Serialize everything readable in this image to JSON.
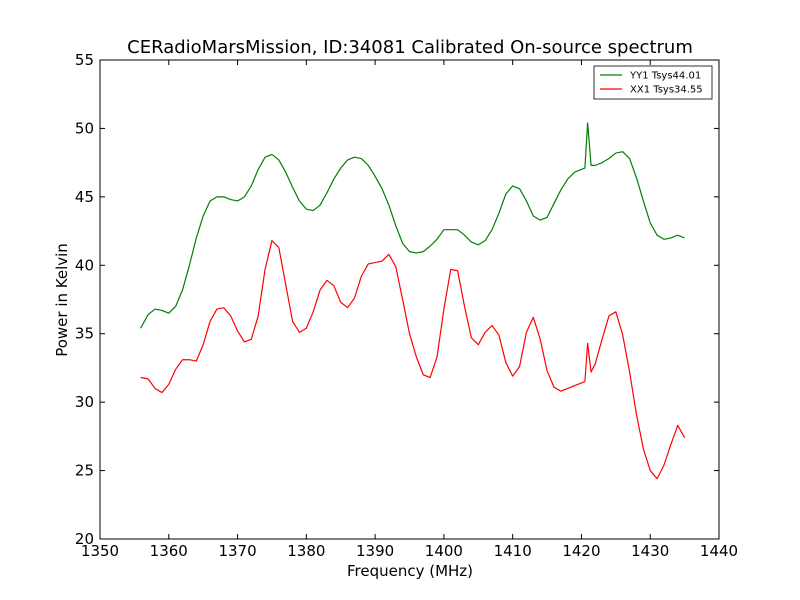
{
  "chart_data": {
    "type": "line",
    "title": "CERadioMarsMission, ID:34081 Calibrated On-source spectrum",
    "xlabel": "Frequency (MHz)",
    "ylabel": "Power in Kelvin",
    "xlim": [
      1350,
      1440
    ],
    "ylim": [
      20,
      55
    ],
    "xticks": [
      "1350",
      "1360",
      "1370",
      "1380",
      "1390",
      "1400",
      "1410",
      "1420",
      "1430",
      "1440"
    ],
    "yticks": [
      "20",
      "25",
      "30",
      "35",
      "40",
      "45",
      "50",
      "55"
    ],
    "grid": false,
    "legend_position": "top-right",
    "series": [
      {
        "name": "YY1 Tsys44.01",
        "color": "#008000",
        "points": [
          [
            1355.9,
            35.4
          ],
          [
            1357.0,
            36.4
          ],
          [
            1358.0,
            36.8
          ],
          [
            1359.0,
            36.7
          ],
          [
            1360.0,
            36.5
          ],
          [
            1361.0,
            37.0
          ],
          [
            1362.0,
            38.2
          ],
          [
            1363.0,
            40.0
          ],
          [
            1364.0,
            42.0
          ],
          [
            1365.0,
            43.6
          ],
          [
            1366.0,
            44.7
          ],
          [
            1367.0,
            45.0
          ],
          [
            1368.0,
            45.0
          ],
          [
            1369.0,
            44.8
          ],
          [
            1370.0,
            44.7
          ],
          [
            1371.0,
            45.0
          ],
          [
            1372.0,
            45.8
          ],
          [
            1373.0,
            47.0
          ],
          [
            1374.0,
            47.9
          ],
          [
            1375.0,
            48.1
          ],
          [
            1376.0,
            47.7
          ],
          [
            1377.0,
            46.8
          ],
          [
            1378.0,
            45.7
          ],
          [
            1379.0,
            44.7
          ],
          [
            1380.0,
            44.1
          ],
          [
            1381.0,
            44.0
          ],
          [
            1382.0,
            44.4
          ],
          [
            1383.0,
            45.3
          ],
          [
            1384.0,
            46.3
          ],
          [
            1385.0,
            47.1
          ],
          [
            1386.0,
            47.7
          ],
          [
            1387.0,
            47.9
          ],
          [
            1388.0,
            47.8
          ],
          [
            1389.0,
            47.3
          ],
          [
            1390.0,
            46.5
          ],
          [
            1391.0,
            45.6
          ],
          [
            1392.0,
            44.4
          ],
          [
            1393.0,
            42.9
          ],
          [
            1394.0,
            41.6
          ],
          [
            1395.0,
            41.0
          ],
          [
            1396.0,
            40.9
          ],
          [
            1397.0,
            41.0
          ],
          [
            1398.0,
            41.4
          ],
          [
            1399.0,
            41.9
          ],
          [
            1400.0,
            42.6
          ],
          [
            1401.0,
            42.6
          ],
          [
            1402.0,
            42.6
          ],
          [
            1403.0,
            42.2
          ],
          [
            1404.0,
            41.7
          ],
          [
            1405.0,
            41.5
          ],
          [
            1406.0,
            41.8
          ],
          [
            1407.0,
            42.6
          ],
          [
            1408.0,
            43.8
          ],
          [
            1409.0,
            45.2
          ],
          [
            1410.0,
            45.8
          ],
          [
            1411.0,
            45.6
          ],
          [
            1412.0,
            44.7
          ],
          [
            1413.0,
            43.6
          ],
          [
            1414.0,
            43.3
          ],
          [
            1415.0,
            43.5
          ],
          [
            1416.0,
            44.5
          ],
          [
            1417.0,
            45.5
          ],
          [
            1418.0,
            46.3
          ],
          [
            1419.0,
            46.8
          ],
          [
            1420.5,
            47.1
          ],
          [
            1420.9,
            50.4
          ],
          [
            1421.4,
            47.3
          ],
          [
            1422.0,
            47.3
          ],
          [
            1423.0,
            47.5
          ],
          [
            1424.0,
            47.8
          ],
          [
            1425.0,
            48.2
          ],
          [
            1426.0,
            48.3
          ],
          [
            1427.0,
            47.8
          ],
          [
            1428.0,
            46.4
          ],
          [
            1429.0,
            44.7
          ],
          [
            1430.0,
            43.1
          ],
          [
            1431.0,
            42.2
          ],
          [
            1432.0,
            41.9
          ],
          [
            1433.0,
            42.0
          ],
          [
            1434.0,
            42.2
          ],
          [
            1435.0,
            42.0
          ]
        ]
      },
      {
        "name": "XX1 Tsys34.55",
        "color": "#ff0000",
        "points": [
          [
            1355.9,
            31.8
          ],
          [
            1357.0,
            31.7
          ],
          [
            1358.0,
            31.0
          ],
          [
            1359.0,
            30.7
          ],
          [
            1360.0,
            31.3
          ],
          [
            1361.0,
            32.4
          ],
          [
            1362.0,
            33.1
          ],
          [
            1363.0,
            33.1
          ],
          [
            1364.0,
            33.0
          ],
          [
            1365.0,
            34.2
          ],
          [
            1366.0,
            35.9
          ],
          [
            1367.0,
            36.8
          ],
          [
            1368.0,
            36.9
          ],
          [
            1369.0,
            36.3
          ],
          [
            1370.0,
            35.2
          ],
          [
            1371.0,
            34.4
          ],
          [
            1372.0,
            34.6
          ],
          [
            1373.0,
            36.3
          ],
          [
            1374.0,
            39.7
          ],
          [
            1375.0,
            41.8
          ],
          [
            1376.0,
            41.3
          ],
          [
            1377.0,
            38.6
          ],
          [
            1378.0,
            35.9
          ],
          [
            1379.0,
            35.1
          ],
          [
            1380.0,
            35.4
          ],
          [
            1381.0,
            36.6
          ],
          [
            1382.0,
            38.2
          ],
          [
            1383.0,
            38.9
          ],
          [
            1384.0,
            38.5
          ],
          [
            1385.0,
            37.3
          ],
          [
            1386.0,
            36.9
          ],
          [
            1387.0,
            37.6
          ],
          [
            1388.0,
            39.2
          ],
          [
            1389.0,
            40.1
          ],
          [
            1390.0,
            40.2
          ],
          [
            1391.0,
            40.3
          ],
          [
            1392.0,
            40.8
          ],
          [
            1393.0,
            39.9
          ],
          [
            1394.0,
            37.5
          ],
          [
            1395.0,
            35.0
          ],
          [
            1396.0,
            33.3
          ],
          [
            1397.0,
            32.0
          ],
          [
            1398.0,
            31.8
          ],
          [
            1399.0,
            33.3
          ],
          [
            1400.0,
            36.8
          ],
          [
            1401.0,
            39.7
          ],
          [
            1402.0,
            39.6
          ],
          [
            1403.0,
            37.0
          ],
          [
            1404.0,
            34.7
          ],
          [
            1405.0,
            34.2
          ],
          [
            1406.0,
            35.1
          ],
          [
            1407.0,
            35.6
          ],
          [
            1408.0,
            34.9
          ],
          [
            1409.0,
            32.9
          ],
          [
            1410.0,
            31.9
          ],
          [
            1411.0,
            32.6
          ],
          [
            1412.0,
            35.1
          ],
          [
            1413.0,
            36.2
          ],
          [
            1414.0,
            34.6
          ],
          [
            1415.0,
            32.3
          ],
          [
            1416.0,
            31.1
          ],
          [
            1417.0,
            30.8
          ],
          [
            1418.0,
            31.0
          ],
          [
            1419.0,
            31.2
          ],
          [
            1420.5,
            31.5
          ],
          [
            1420.9,
            34.3
          ],
          [
            1421.4,
            32.2
          ],
          [
            1422.0,
            32.8
          ],
          [
            1423.0,
            34.6
          ],
          [
            1424.0,
            36.3
          ],
          [
            1425.0,
            36.6
          ],
          [
            1426.0,
            34.9
          ],
          [
            1427.0,
            32.2
          ],
          [
            1428.0,
            29.1
          ],
          [
            1429.0,
            26.6
          ],
          [
            1430.0,
            25.0
          ],
          [
            1431.0,
            24.4
          ],
          [
            1432.0,
            25.4
          ],
          [
            1433.0,
            26.9
          ],
          [
            1434.0,
            28.3
          ],
          [
            1435.0,
            27.4
          ]
        ]
      }
    ]
  }
}
